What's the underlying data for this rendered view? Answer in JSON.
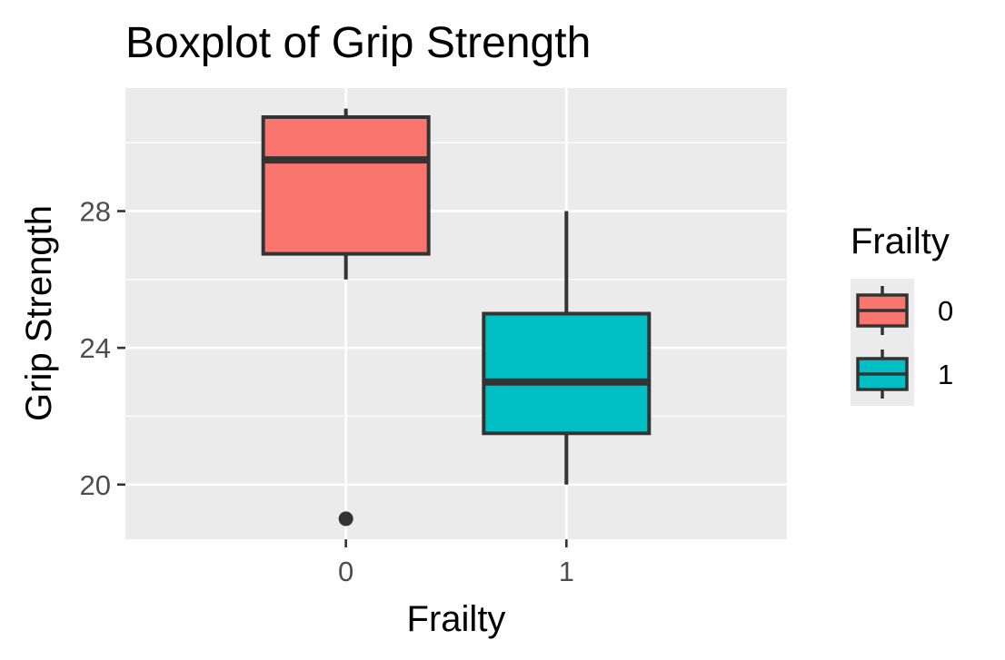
{
  "chart_data": {
    "type": "boxplot",
    "title": "Boxplot of Grip Strength",
    "xlabel": "Frailty",
    "ylabel": "Grip Strength",
    "categories": [
      "0",
      "1"
    ],
    "ylim": [
      18.4,
      31.6
    ],
    "yticks": [
      20,
      24,
      28
    ],
    "yticks_labels": [
      "20",
      "24",
      "28"
    ],
    "grid": true,
    "legend": {
      "title": "Frailty",
      "placement": "right",
      "entries": [
        "0",
        "1"
      ]
    },
    "boxes": [
      {
        "category": "0",
        "color": "#F8766D",
        "whisker_low": 26,
        "q1": 26.75,
        "median": 29.5,
        "q3": 30.75,
        "whisker_high": 31,
        "outliers": [
          19
        ]
      },
      {
        "category": "1",
        "color": "#00BFC4",
        "whisker_low": 20,
        "q1": 21.5,
        "median": 23,
        "q3": 25,
        "whisker_high": 28,
        "outliers": []
      }
    ]
  },
  "colors": {
    "panel_background": "#EBEBEB",
    "grid_major": "#FFFFFF",
    "box_outline": "#333333"
  }
}
